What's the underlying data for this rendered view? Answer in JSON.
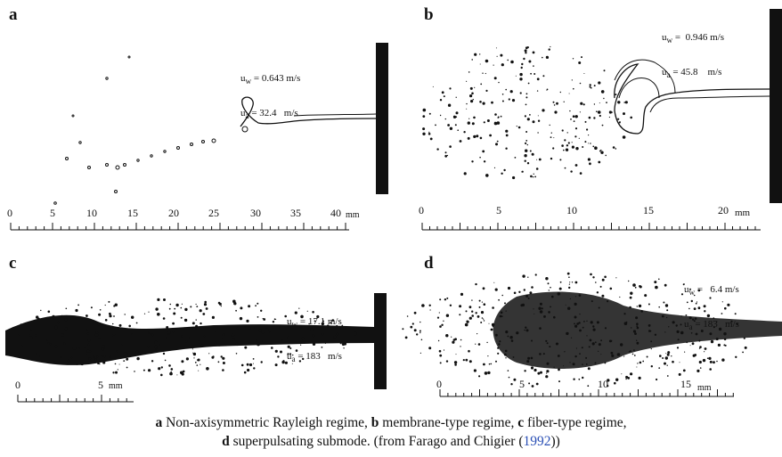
{
  "panels": [
    {
      "label": "a",
      "uw": "uₐ = 0.643 m/s",
      "ua": "uₐ = 32.4   m/s",
      "ticks": [
        "0",
        "5",
        "10",
        "15",
        "20",
        "25",
        "30",
        "35",
        "40"
      ],
      "unit": "mm"
    },
    {
      "label": "b",
      "uw": "u = 0.946 m/s",
      "ua": "u = 45.8   m/s",
      "ticks": [
        "0",
        "5",
        "10",
        "15",
        "20"
      ],
      "unit": "mm"
    },
    {
      "label": "c",
      "uw": "u = 17.1 m/s",
      "ua": "u = 183   m/s",
      "ticks": [
        "0",
        "5"
      ],
      "unit": "mm"
    },
    {
      "label": "d",
      "uw": "u = 6.4 m/s",
      "ua": "u = 183   m/s",
      "ticks": [
        "0",
        "5",
        "10",
        "15"
      ],
      "unit": "mm"
    }
  ],
  "subscripts": {
    "w": "w",
    "a": "a"
  },
  "caption": {
    "line1": [
      {
        "b": "a"
      },
      {
        "t": " Non-axisymmetric Rayleigh regime, "
      },
      {
        "b": "b"
      },
      {
        "t": " membrane-type regime, "
      },
      {
        "b": "c"
      },
      {
        "t": " fiber-type regime,"
      }
    ],
    "line2_bold": "d",
    "line2_text": " superpulsating submode.  (from Farago and Chigier (",
    "line2_ref": "1992",
    "line2_end": "))"
  }
}
